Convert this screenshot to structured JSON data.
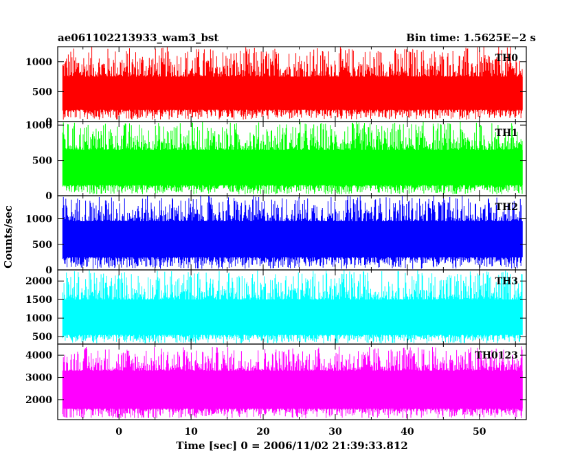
{
  "header": {
    "left_title": "ae061102213933_wam3_bst",
    "right_title": "Bin time: 1.5625E−2 s"
  },
  "chart_data": {
    "type": "line",
    "title": "ae061102213933_wam3_bst",
    "subtitle": "Bin time: 1.5625E−2 s",
    "xlabel": "Time [sec] 0 = 2006/11/02 21:39:33.812",
    "ylabel": "Counts/sec",
    "xlim": [
      -8.5,
      56.5
    ],
    "data_x_range": [
      -7.8,
      56.0
    ],
    "x_ticks": [
      0,
      10,
      20,
      30,
      40,
      50
    ],
    "x_tick_labels": [
      "0",
      "10",
      "20",
      "30",
      "40",
      "50"
    ],
    "grid": false,
    "panels": [
      {
        "name": "TH0",
        "color": "#ff0000",
        "ylim": [
          0,
          1250
        ],
        "y_ticks": [
          0,
          500,
          1000
        ],
        "y_tick_labels": [
          "0",
          "500",
          "1000"
        ],
        "baseline": 500,
        "low_range": [
          30,
          200
        ],
        "high_range": [
          750,
          1250
        ]
      },
      {
        "name": "TH1",
        "color": "#00ff00",
        "ylim": [
          0,
          1050
        ],
        "y_ticks": [
          0,
          500,
          1000
        ],
        "y_tick_labels": [
          "0",
          "500",
          "1000"
        ],
        "baseline": 450,
        "low_range": [
          20,
          150
        ],
        "high_range": [
          650,
          1050
        ]
      },
      {
        "name": "TH2",
        "color": "#0000ff",
        "ylim": [
          0,
          1450
        ],
        "y_ticks": [
          0,
          500,
          1000
        ],
        "y_tick_labels": [
          "0",
          "500",
          "1000"
        ],
        "baseline": 600,
        "low_range": [
          20,
          250
        ],
        "high_range": [
          950,
          1450
        ]
      },
      {
        "name": "TH3",
        "color": "#00ffff",
        "ylim": [
          300,
          2300
        ],
        "y_ticks": [
          500,
          1000,
          1500,
          2000
        ],
        "y_tick_labels": [
          "500",
          "1000",
          "1500",
          "2000"
        ],
        "baseline": 1000,
        "low_range": [
          320,
          550
        ],
        "high_range": [
          1500,
          2300
        ]
      },
      {
        "name": "TH0123",
        "color": "#ff00ff",
        "ylim": [
          1100,
          4500
        ],
        "y_ticks": [
          2000,
          3000,
          4000
        ],
        "y_tick_labels": [
          "2000",
          "3000",
          "4000"
        ],
        "baseline": 2300,
        "low_range": [
          1150,
          1600
        ],
        "high_range": [
          3300,
          4400
        ]
      }
    ]
  }
}
